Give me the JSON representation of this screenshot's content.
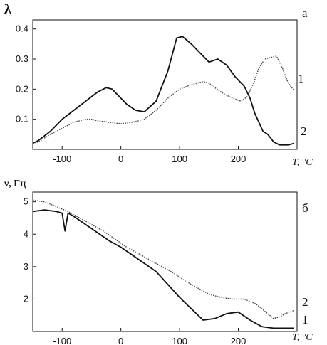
{
  "chart_data": [
    {
      "type": "line",
      "panel_label": "а",
      "ylabel": "λ",
      "xlabel": "T, °C",
      "xlim": [
        -150,
        300
      ],
      "ylim": [
        0.0,
        0.43
      ],
      "x_ticks": [
        -100,
        0,
        100,
        200
      ],
      "y_ticks": [
        0.1,
        0.2,
        0.3,
        0.4
      ],
      "y_tick_labels": [
        "0.1",
        "0.2",
        "0.3",
        "0.4"
      ],
      "grid": false,
      "series": [
        {
          "name": "1",
          "style": "solid",
          "x": [
            -150,
            -140,
            -120,
            -100,
            -80,
            -60,
            -40,
            -25,
            -15,
            -5,
            10,
            25,
            40,
            60,
            80,
            95,
            105,
            120,
            135,
            150,
            165,
            180,
            195,
            210,
            220,
            228,
            235,
            242,
            250,
            260,
            270,
            285,
            295
          ],
          "y": [
            0.02,
            0.03,
            0.06,
            0.1,
            0.13,
            0.16,
            0.19,
            0.205,
            0.2,
            0.18,
            0.15,
            0.13,
            0.125,
            0.16,
            0.26,
            0.37,
            0.375,
            0.35,
            0.32,
            0.29,
            0.3,
            0.28,
            0.24,
            0.21,
            0.17,
            0.12,
            0.09,
            0.06,
            0.05,
            0.025,
            0.015,
            0.015,
            0.02
          ]
        },
        {
          "name": "2",
          "style": "dotted",
          "x": [
            -150,
            -140,
            -120,
            -100,
            -80,
            -60,
            -50,
            -40,
            -20,
            0,
            20,
            40,
            60,
            80,
            100,
            120,
            140,
            150,
            160,
            175,
            190,
            205,
            215,
            225,
            235,
            245,
            255,
            265,
            275,
            285,
            295
          ],
          "y": [
            0.02,
            0.025,
            0.05,
            0.07,
            0.09,
            0.1,
            0.1,
            0.095,
            0.09,
            0.085,
            0.09,
            0.1,
            0.13,
            0.17,
            0.2,
            0.215,
            0.225,
            0.22,
            0.205,
            0.185,
            0.17,
            0.16,
            0.175,
            0.215,
            0.27,
            0.3,
            0.305,
            0.31,
            0.27,
            0.22,
            0.195
          ]
        }
      ]
    },
    {
      "type": "line",
      "panel_label": "б",
      "ylabel": "ν, Гц",
      "xlabel": "T, °C",
      "xlim": [
        -150,
        300
      ],
      "ylim": [
        1.0,
        5.3
      ],
      "x_ticks": [
        -100,
        0,
        100,
        200
      ],
      "y_ticks": [
        2,
        3,
        4,
        5
      ],
      "y_tick_labels": [
        "2",
        "3",
        "4",
        "5"
      ],
      "grid": false,
      "series": [
        {
          "name": "1",
          "style": "solid",
          "x": [
            -150,
            -130,
            -110,
            -100,
            -95,
            -90,
            -80,
            -60,
            -40,
            -20,
            0,
            20,
            40,
            60,
            80,
            100,
            120,
            140,
            160,
            180,
            200,
            220,
            240,
            260,
            280,
            295
          ],
          "y": [
            4.7,
            4.75,
            4.7,
            4.65,
            4.1,
            4.65,
            4.55,
            4.3,
            4.05,
            3.8,
            3.6,
            3.35,
            3.1,
            2.85,
            2.45,
            2.05,
            1.7,
            1.35,
            1.4,
            1.55,
            1.6,
            1.35,
            1.15,
            1.1,
            1.1,
            1.1
          ]
        },
        {
          "name": "2",
          "style": "dotted",
          "x": [
            -150,
            -130,
            -110,
            -90,
            -70,
            -50,
            -30,
            -10,
            10,
            30,
            50,
            70,
            90,
            110,
            130,
            150,
            170,
            190,
            210,
            230,
            250,
            260,
            270,
            280,
            295
          ],
          "y": [
            5.05,
            5.0,
            4.85,
            4.7,
            4.5,
            4.3,
            4.1,
            3.85,
            3.6,
            3.4,
            3.2,
            3.0,
            2.8,
            2.55,
            2.35,
            2.15,
            2.05,
            2.0,
            2.0,
            1.85,
            1.55,
            1.4,
            1.45,
            1.55,
            1.65
          ]
        }
      ]
    }
  ]
}
